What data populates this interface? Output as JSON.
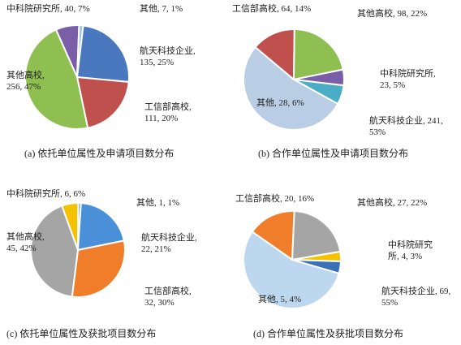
{
  "chart_data": [
    {
      "type": "pie",
      "caption": "(a) 依托单位属性及申请项目数分布",
      "labels": [
        "中科院研究所, 40, 7%",
        "其他, 7, 1%",
        "航天科技企业, 135, 25%",
        "工信部高校, 111, 20%",
        "其他高校, 256, 47%"
      ],
      "values": [
        40,
        7,
        135,
        111,
        256
      ],
      "colors": [
        "#7a5fa8",
        "#9dc3e6",
        "#4a78be",
        "#c0504d",
        "#8fbf50"
      ]
    },
    {
      "type": "pie",
      "caption": "(b) 合作单位属性及申请项目数分布",
      "labels": [
        "工信部高校, 64, 14%",
        "其他高校, 98, 22%",
        "中科院研究所, 23, 5%",
        "其他, 28, 6%",
        "航天科技企业, 241, 53%"
      ],
      "values": [
        64,
        98,
        23,
        28,
        241
      ],
      "colors": [
        "#c0504d",
        "#8fbf50",
        "#7a5fa8",
        "#4bacc6",
        "#b9cde5"
      ]
    },
    {
      "type": "pie",
      "caption": "(c) 依托单位属性及获批项目数分布",
      "labels": [
        "中科院研究所, 6, 6%",
        "其他, 1, 1%",
        "航天科技企业, 22, 21%",
        "工信部高校, 32, 30%",
        "其他高校, 45, 42%"
      ],
      "values": [
        6,
        1,
        22,
        32,
        45
      ],
      "colors": [
        "#f5c200",
        "#5b9bd5",
        "#4a90d9",
        "#f07d2a",
        "#a5a5a5"
      ]
    },
    {
      "type": "pie",
      "caption": "(d) 合作单位属性及获批项目数分布",
      "labels": [
        "工信部高校, 20, 16%",
        "其他高校, 27, 22%",
        "中科院研究所, 4, 3%",
        "其他, 5, 4%",
        "航天科技企业, 69, 55%"
      ],
      "values": [
        20,
        27,
        4,
        5,
        69
      ],
      "colors": [
        "#f07d2a",
        "#a5a5a5",
        "#f5c200",
        "#3b6fb6",
        "#bdd7ee"
      ]
    }
  ]
}
